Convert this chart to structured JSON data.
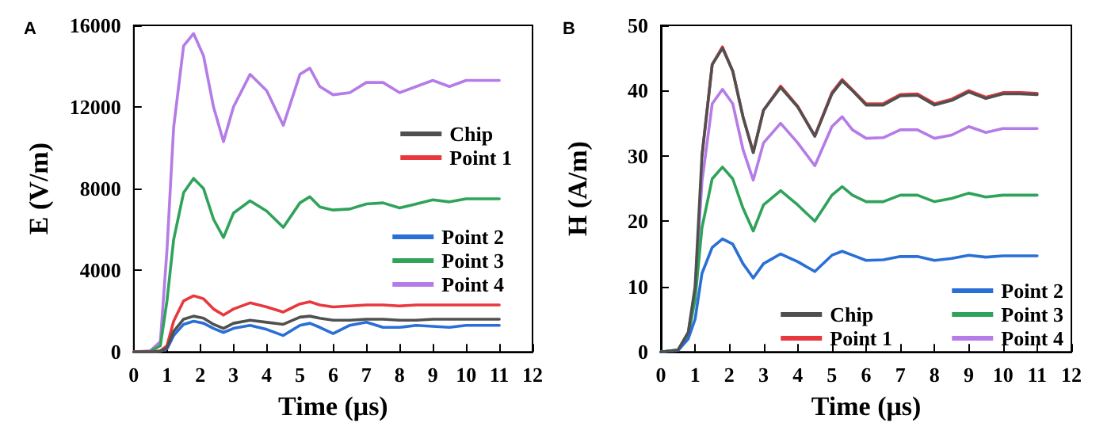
{
  "chart_data": [
    {
      "type": "line",
      "title": "A",
      "xlabel": "Time (μs)",
      "ylabel": "E (V/m)",
      "xlim": [
        0,
        12
      ],
      "xticks": [
        0,
        1,
        2,
        3,
        4,
        5,
        6,
        7,
        8,
        9,
        10,
        11,
        12
      ],
      "ylim": [
        0,
        16000
      ],
      "yticks": [
        0,
        4000,
        8000,
        12000,
        16000
      ],
      "grid": false,
      "legend": "right",
      "marker": "none",
      "line_style": "solid",
      "x": [
        0,
        0.5,
        0.8,
        1,
        1.2,
        1.5,
        1.8,
        2.1,
        2.4,
        2.7,
        3,
        3.5,
        4,
        4.5,
        5,
        5.3,
        5.6,
        6,
        6.5,
        7,
        7.5,
        8,
        8.5,
        9,
        9.5,
        10,
        10.5,
        11
      ],
      "series": [
        {
          "name": "Chip",
          "color": "#505050",
          "values": [
            0,
            0,
            30,
            200,
            1000,
            1600,
            1750,
            1650,
            1350,
            1150,
            1400,
            1550,
            1450,
            1350,
            1700,
            1750,
            1650,
            1550,
            1550,
            1600,
            1600,
            1550,
            1550,
            1600,
            1600,
            1600,
            1600,
            1600
          ]
        },
        {
          "name": "Point 1",
          "color": "#e8383d",
          "values": [
            0,
            0,
            50,
            300,
            1500,
            2500,
            2750,
            2600,
            2100,
            1800,
            2100,
            2400,
            2200,
            1950,
            2350,
            2450,
            2300,
            2200,
            2250,
            2300,
            2300,
            2250,
            2300,
            2300,
            2300,
            2300,
            2300,
            2300
          ]
        },
        {
          "name": "Point 2",
          "color": "#2a6fd6",
          "values": [
            0,
            0,
            20,
            150,
            800,
            1350,
            1500,
            1400,
            1150,
            950,
            1150,
            1300,
            1100,
            800,
            1300,
            1400,
            1200,
            900,
            1300,
            1450,
            1200,
            1200,
            1300,
            1250,
            1200,
            1300,
            1300,
            1300
          ]
        },
        {
          "name": "Point 3",
          "color": "#2fa35a",
          "values": [
            0,
            30,
            300,
            2500,
            5500,
            7800,
            8500,
            8000,
            6500,
            5600,
            6800,
            7400,
            6900,
            6100,
            7300,
            7600,
            7100,
            6950,
            7000,
            7250,
            7300,
            7050,
            7250,
            7450,
            7350,
            7500,
            7500,
            7500
          ]
        },
        {
          "name": "Point 4",
          "color": "#b57be6",
          "values": [
            0,
            50,
            500,
            5000,
            11000,
            15000,
            15600,
            14500,
            12000,
            10300,
            12000,
            13600,
            12800,
            11100,
            13600,
            13900,
            13000,
            12600,
            12700,
            13200,
            13200,
            12700,
            13000,
            13300,
            13000,
            13300,
            13300,
            13300
          ]
        }
      ]
    },
    {
      "type": "line",
      "title": "B",
      "xlabel": "Time (μs)",
      "ylabel": "H (A/m)",
      "xlim": [
        0,
        12
      ],
      "xticks": [
        0,
        1,
        2,
        3,
        4,
        5,
        6,
        7,
        8,
        9,
        10,
        11,
        12
      ],
      "ylim": [
        0,
        50
      ],
      "yticks": [
        0,
        10,
        20,
        30,
        40,
        50
      ],
      "grid": false,
      "legend": "bottom right",
      "marker": "none",
      "line_style": "solid",
      "x": [
        0,
        0.5,
        0.8,
        1,
        1.2,
        1.5,
        1.8,
        2.1,
        2.4,
        2.7,
        3,
        3.5,
        4,
        4.5,
        5,
        5.3,
        5.6,
        6,
        6.5,
        7,
        7.5,
        8,
        8.5,
        9,
        9.5,
        10,
        10.5,
        11
      ],
      "series": [
        {
          "name": "Chip",
          "color": "#505050",
          "values": [
            0,
            0.3,
            3,
            10,
            30,
            44,
            46.5,
            43,
            36,
            30.5,
            37,
            40.5,
            37.5,
            33,
            39.5,
            41.5,
            40,
            37.8,
            37.8,
            39.2,
            39.3,
            37.8,
            38.5,
            39.8,
            38.8,
            39.5,
            39.5,
            39.4
          ]
        },
        {
          "name": "Point 1",
          "color": "#e8383d",
          "values": [
            null,
            null,
            null,
            null,
            30,
            44,
            46.7,
            43,
            36,
            30.6,
            37,
            40.7,
            37.6,
            33.1,
            39.7,
            41.7,
            40.1,
            38,
            38,
            39.4,
            39.5,
            38,
            38.7,
            40,
            39,
            39.7,
            39.7,
            39.6
          ]
        },
        {
          "name": "Point 2",
          "color": "#2a6fd6",
          "values": [
            0,
            0.2,
            2,
            5,
            12,
            16,
            17.3,
            16.5,
            13.5,
            11.3,
            13.5,
            15,
            13.8,
            12.3,
            14.8,
            15.4,
            14.8,
            14,
            14.1,
            14.6,
            14.6,
            14,
            14.3,
            14.8,
            14.5,
            14.7,
            14.7,
            14.7
          ]
        },
        {
          "name": "Point 3",
          "color": "#2fa35a",
          "values": [
            0,
            0.3,
            2.5,
            8,
            19,
            26.5,
            28.3,
            26.5,
            22,
            18.5,
            22.5,
            24.7,
            22.5,
            20,
            24,
            25.3,
            24,
            23,
            23,
            24,
            24,
            23,
            23.5,
            24.3,
            23.7,
            24,
            24,
            24
          ]
        },
        {
          "name": "Point 4",
          "color": "#b57be6",
          "values": [
            null,
            null,
            3,
            9.5,
            26,
            38,
            40.2,
            38,
            31,
            26.3,
            32,
            35,
            32,
            28.5,
            34.5,
            36,
            34,
            32.7,
            32.8,
            34,
            34,
            32.7,
            33.2,
            34.5,
            33.6,
            34.2,
            34.2,
            34.2
          ]
        }
      ]
    }
  ]
}
